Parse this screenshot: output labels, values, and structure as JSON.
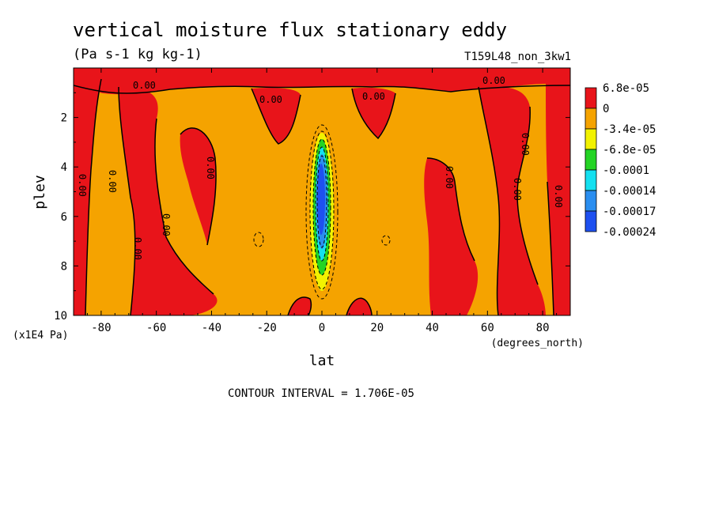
{
  "chart_data": {
    "type": "heatmap",
    "title": "vertical moisture flux stationary eddy",
    "units": "(Pa s-1 kg kg-1)",
    "run_label": "T159L48_non_3kw1",
    "xlabel": "lat",
    "x_units": "(degrees_north)",
    "ylabel": "plev",
    "y_units": "(x1E4 Pa)",
    "xlim": [
      -90,
      90
    ],
    "ylim": [
      10,
      0
    ],
    "x_ticks": [
      -80,
      -60,
      -40,
      -20,
      0,
      20,
      40,
      60,
      80
    ],
    "x_tick_labels": [
      "-80",
      "-60",
      "-40",
      "-20",
      "0",
      "20",
      "40",
      "60",
      "80"
    ],
    "y_ticks": [
      2,
      4,
      6,
      8,
      10
    ],
    "y_tick_labels": [
      "2",
      "4",
      "6",
      "8",
      "10"
    ],
    "contour_interval_text": "CONTOUR INTERVAL = 1.706E-05",
    "contour_label": "0.00",
    "legend": {
      "placement": "right",
      "labels": [
        "6.8e-05",
        "0",
        "-3.4e-05",
        "-6.8e-05",
        "-0.0001",
        "-0.00014",
        "-0.00017",
        "-0.00024"
      ],
      "colors": [
        "#e8141a",
        "#f5a300",
        "#f2f200",
        "#24d424",
        "#14e0f0",
        "#2a8ef0",
        "#1e50f0"
      ]
    },
    "regions": [
      {
        "level": "positive",
        "color": "#e8141a",
        "lat_range": [
          -90,
          -84
        ],
        "plev_range": [
          0.2,
          10
        ]
      },
      {
        "level": "positive",
        "color": "#e8141a",
        "lat_range": [
          -70,
          -57
        ],
        "plev_range": [
          1,
          10
        ]
      },
      {
        "level": "positive",
        "color": "#e8141a",
        "lat_range": [
          -50,
          -43
        ],
        "plev_range": [
          2,
          6
        ]
      },
      {
        "level": "positive",
        "color": "#e8141a",
        "lat_range": [
          -17,
          -6
        ],
        "plev_range": [
          1,
          3
        ]
      },
      {
        "level": "positive",
        "color": "#e8141a",
        "lat_range": [
          14,
          27
        ],
        "plev_range": [
          1,
          3
        ]
      },
      {
        "level": "positive",
        "color": "#e8141a",
        "lat_range": [
          38,
          48
        ],
        "plev_range": [
          4,
          10
        ]
      },
      {
        "level": "positive",
        "color": "#e8141a",
        "lat_range": [
          57,
          76
        ],
        "plev_range": [
          1,
          10
        ]
      },
      {
        "level": "positive",
        "color": "#e8141a",
        "lat_range": [
          83,
          90
        ],
        "plev_range": [
          0.2,
          10
        ]
      },
      {
        "level": "negative",
        "color": "#1e50f0",
        "lat_range": [
          -2,
          2
        ],
        "plev_range": [
          3.5,
          8
        ]
      }
    ]
  }
}
